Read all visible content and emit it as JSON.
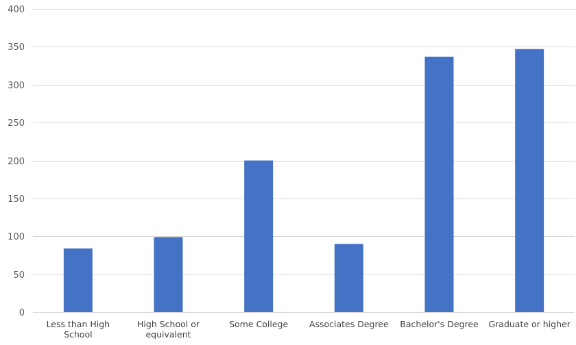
{
  "chart_data": {
    "type": "bar",
    "title": "",
    "xlabel": "",
    "ylabel": "",
    "categories": [
      "Less than High School",
      "High School or equivalent",
      "Some College",
      "Associates Degree",
      "Bachelor's Degree",
      "Graduate or higher"
    ],
    "category_label_lines": [
      [
        "Less than High",
        "School"
      ],
      [
        "High School or",
        "equivalent"
      ],
      [
        "Some College"
      ],
      [
        "Associates Degree"
      ],
      [
        "Bachelor's Degree"
      ],
      [
        "Graduate or higher"
      ]
    ],
    "values": [
      84,
      99,
      200,
      90,
      337,
      347
    ],
    "ylim": [
      0,
      400
    ],
    "yticks": [
      0,
      50,
      100,
      150,
      200,
      250,
      300,
      350,
      400
    ],
    "grid": true,
    "legend": "none",
    "bar_color": "#4472c4"
  }
}
